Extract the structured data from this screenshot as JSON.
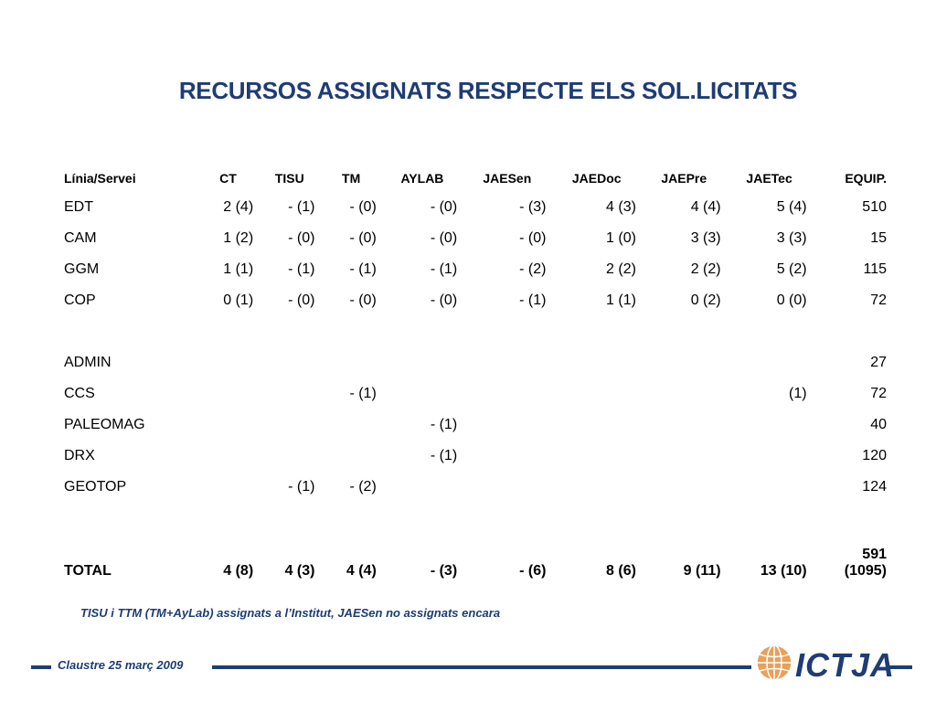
{
  "title": "RECURSOS ASSIGNATS RESPECTE ELS SOL.LICITATS",
  "table": {
    "headers": [
      "Línia/Servei",
      "CT",
      "TISU",
      "TM",
      "AYLAB",
      "JAESen",
      "JAEDoc",
      "JAEPre",
      "JAETec",
      "EQUIP."
    ],
    "rows": [
      [
        "EDT",
        "2 (4)",
        "- (1)",
        "- (0)",
        "- (0)",
        "- (3)",
        "4 (3)",
        "4 (4)",
        "5 (4)",
        "510"
      ],
      [
        "CAM",
        "1 (2)",
        "- (0)",
        "- (0)",
        "- (0)",
        "- (0)",
        "1 (0)",
        "3 (3)",
        "3 (3)",
        "15"
      ],
      [
        "GGM",
        "1 (1)",
        "- (1)",
        "- (1)",
        "- (1)",
        "- (2)",
        "2 (2)",
        "2 (2)",
        "5 (2)",
        "115"
      ],
      [
        "COP",
        "0 (1)",
        "- (0)",
        "- (0)",
        "- (0)",
        "- (1)",
        "1 (1)",
        "0 (2)",
        "0 (0)",
        "72"
      ],
      [
        "",
        "",
        "",
        "",
        "",
        "",
        "",
        "",
        "",
        ""
      ],
      [
        "ADMIN",
        "",
        "",
        "",
        "",
        "",
        "",
        "",
        "",
        "27"
      ],
      [
        "CCS",
        "",
        "",
        "- (1)",
        "",
        "",
        "",
        "",
        "(1)",
        "72"
      ],
      [
        "PALEOMAG",
        "",
        "",
        "",
        "- (1)",
        "",
        "",
        "",
        "",
        "40"
      ],
      [
        "DRX",
        "",
        "",
        "",
        "- (1)",
        "",
        "",
        "",
        "",
        "120"
      ],
      [
        "GEOTOP",
        "",
        "- (1)",
        "- (2)",
        "",
        "",
        "",
        "",
        "",
        "124"
      ],
      [
        "",
        "",
        "",
        "",
        "",
        "",
        "",
        "",
        "",
        ""
      ]
    ],
    "total": {
      "label": "TOTAL",
      "values": [
        "4 (8)",
        "4 (3)",
        "4 (4)",
        "- (3)",
        "- (6)",
        "8 (6)",
        "9 (11)",
        "13 (10)"
      ],
      "equip_line1": "591",
      "equip_line2": "(1095)"
    }
  },
  "note": "TISU i TTM (TM+AyLab) assignats a l’Institut, JAESen no assignats encara",
  "footer": {
    "text": "Claustre 25 març 2009",
    "logo_text": "ICTJA"
  },
  "colors": {
    "brand": "#1f3c73",
    "globe": "#e8a05a"
  },
  "icons": {
    "logo": "ictja-globe-icon"
  }
}
